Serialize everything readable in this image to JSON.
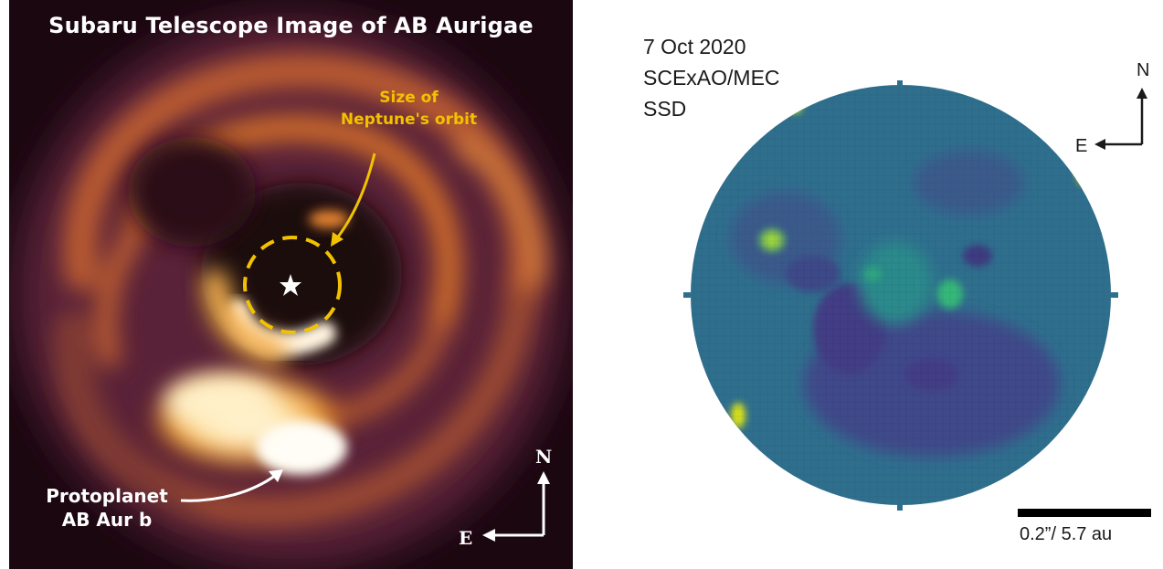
{
  "left_panel": {
    "title": "Subaru Telescope Image of AB Aurigae",
    "orbit_label": [
      "Size of",
      "Neptune's orbit"
    ],
    "planet_label": [
      "Protoplanet",
      "AB Aur b"
    ],
    "compass": {
      "north": "N",
      "east": "E"
    },
    "colors": {
      "orbit_annotation": "#f2c200",
      "colormap_dark": "#1a0710",
      "colormap_bright": "#fff8e8"
    },
    "icons": {
      "star": "star-icon"
    }
  },
  "right_panel": {
    "info": [
      "7 Oct 2020",
      "SCExAO/MEC",
      "SSD"
    ],
    "compass": {
      "north": "N",
      "east": "E"
    },
    "scale_label": "0.2”/ 5.7 au",
    "colors": {
      "viridis_low": "#433e85",
      "viridis_mid": "#2f6f8e",
      "viridis_high": "#dde318"
    }
  }
}
